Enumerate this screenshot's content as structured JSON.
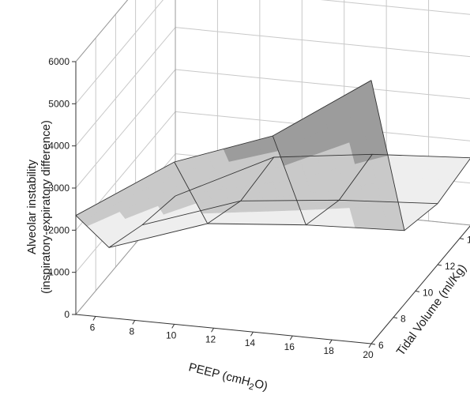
{
  "chart_data": {
    "type": "surface",
    "xlabel": "PEEP (cmH2O)",
    "ylabel": "Tidal Volume (ml/Kg)",
    "zlabel_line1": "Alveolar instability",
    "zlabel_line2": "(inspiratory-expiratory difference)",
    "x": [
      5,
      10,
      15,
      20
    ],
    "y": [
      6,
      9,
      12,
      15
    ],
    "z": [
      [
        2350,
        3850,
        4700,
        6250
      ],
      [
        650,
        1450,
        1650,
        1750
      ],
      [
        250,
        1050,
        1300,
        1450
      ],
      [
        0,
        1150,
        1450,
        1600
      ]
    ],
    "x_ticks": [
      "6",
      "8",
      "10",
      "12",
      "14",
      "16",
      "18",
      "20"
    ],
    "y_ticks": [
      "6",
      "8",
      "10",
      "12",
      "14"
    ],
    "z_ticks": [
      "0",
      "1000",
      "2000",
      "3000",
      "4000",
      "5000",
      "6000"
    ],
    "xlim": [
      5,
      20
    ],
    "ylim": [
      6,
      15
    ],
    "zlim": [
      0,
      6000
    ],
    "contour_levels": [
      0,
      2000,
      4000,
      6000
    ],
    "colors": {
      "band_0": "#eeeeee",
      "band_1": "#c9c9c9",
      "band_2": "#9c9c9c",
      "band_3": "#6b6b6b",
      "grid": "#c8c8c8",
      "axis": "#333333"
    },
    "grid": true
  }
}
